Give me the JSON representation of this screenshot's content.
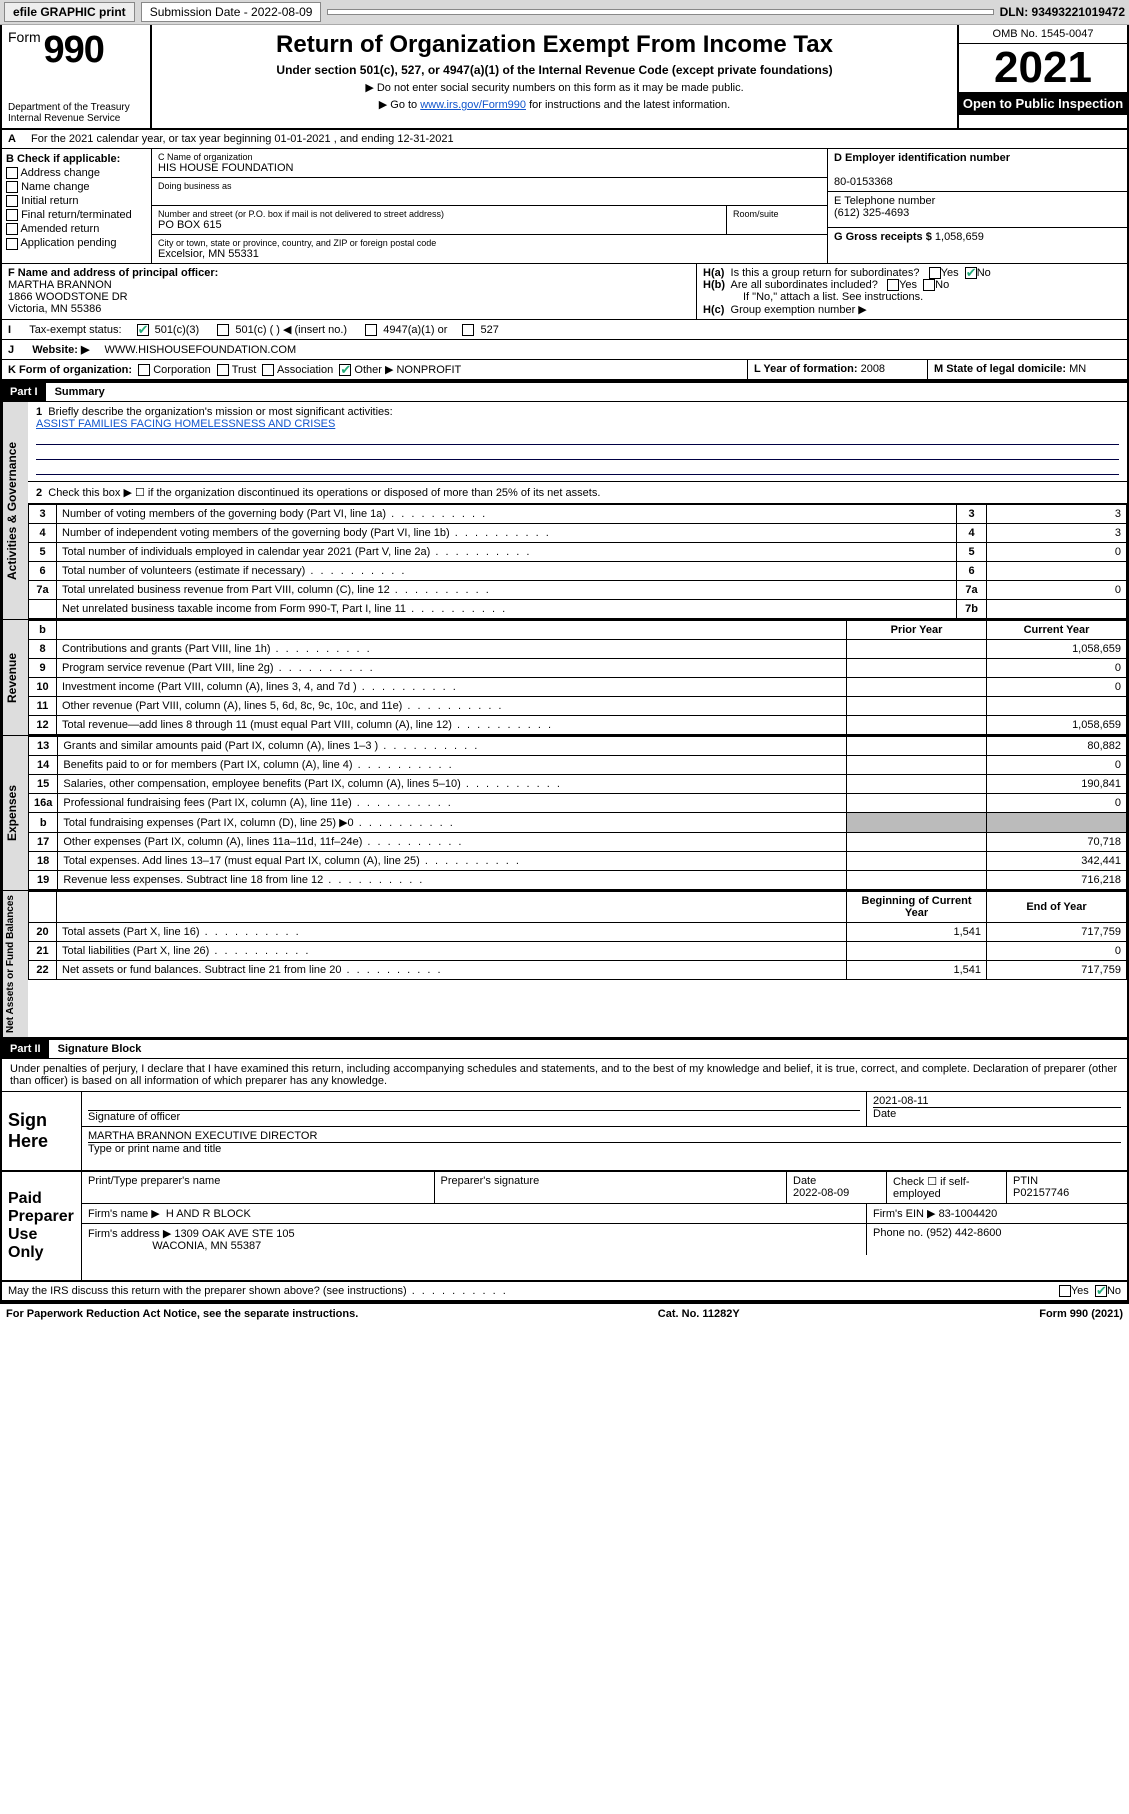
{
  "toolbar": {
    "efile": "efile GRAPHIC print",
    "submission_label": "Submission Date - 2022-08-09",
    "dln": "DLN: 93493221019472"
  },
  "header": {
    "form_word": "Form",
    "form_no": "990",
    "dept": "Department of the Treasury",
    "irs": "Internal Revenue Service",
    "title": "Return of Organization Exempt From Income Tax",
    "subtitle": "Under section 501(c), 527, or 4947(a)(1) of the Internal Revenue Code (except private foundations)",
    "note1": "▶ Do not enter social security numbers on this form as it may be made public.",
    "note2_pre": "▶ Go to ",
    "note2_link": "www.irs.gov/Form990",
    "note2_post": " for instructions and the latest information.",
    "omb": "OMB No. 1545-0047",
    "year": "2021",
    "open": "Open to Public Inspection"
  },
  "A": {
    "text": "For the 2021 calendar year, or tax year beginning 01-01-2021   , and ending 12-31-2021"
  },
  "B": {
    "label": "B Check if applicable:",
    "opts": [
      "Address change",
      "Name change",
      "Initial return",
      "Final return/terminated",
      "Amended return",
      "Application pending"
    ]
  },
  "C": {
    "name_lbl": "C Name of organization",
    "name": "HIS HOUSE FOUNDATION",
    "dba_lbl": "Doing business as",
    "dba": "",
    "addr_lbl": "Number and street (or P.O. box if mail is not delivered to street address)",
    "room_lbl": "Room/suite",
    "addr": "PO BOX 615",
    "city_lbl": "City or town, state or province, country, and ZIP or foreign postal code",
    "city": "Excelsior, MN  55331"
  },
  "D": {
    "lbl": "D Employer identification number",
    "val": "80-0153368"
  },
  "E": {
    "lbl": "E Telephone number",
    "val": "(612) 325-4693"
  },
  "G": {
    "lbl": "G Gross receipts $",
    "val": "1,058,659"
  },
  "F": {
    "lbl": "F  Name and address of principal officer:",
    "name": "MARTHA BRANNON",
    "addr1": "1866 WOODSTONE DR",
    "addr2": "Victoria, MN  55386"
  },
  "H": {
    "a": "Is this a group return for subordinates?",
    "b": "Are all subordinates included?",
    "b_note": "If \"No,\" attach a list. See instructions.",
    "c": "Group exemption number ▶",
    "yes": "Yes",
    "no": "No"
  },
  "I": {
    "lbl": "Tax-exempt status:",
    "o1": "501(c)(3)",
    "o2": "501(c) (   ) ◀ (insert no.)",
    "o3": "4947(a)(1) or",
    "o4": "527"
  },
  "J": {
    "lbl": "Website: ▶",
    "val": "WWW.HISHOUSEFOUNDATION.COM"
  },
  "K": {
    "lbl": "K Form of organization:",
    "opts": [
      "Corporation",
      "Trust",
      "Association",
      "Other ▶"
    ],
    "other": "NONPROFIT"
  },
  "L": {
    "lbl": "L Year of formation:",
    "val": "2008"
  },
  "M": {
    "lbl": "M State of legal domicile:",
    "val": "MN"
  },
  "part1": {
    "banner": "Part I",
    "title": "Summary",
    "q1": "Briefly describe the organization's mission or most significant activities:",
    "q1_ans": "ASSIST FAMILIES FACING HOMELESSNESS AND CRISES",
    "q2": "Check this box ▶ ☐  if the organization discontinued its operations or disposed of more than 25% of its net assets.",
    "prior_hdr": "Prior Year",
    "curr_hdr": "Current Year",
    "boy_hdr": "Beginning of Current Year",
    "eoy_hdr": "End of Year"
  },
  "lines_gov": [
    {
      "n": "3",
      "d": "Number of voting members of the governing body (Part VI, line 1a)",
      "b": "3",
      "v": "3"
    },
    {
      "n": "4",
      "d": "Number of independent voting members of the governing body (Part VI, line 1b)",
      "b": "4",
      "v": "3"
    },
    {
      "n": "5",
      "d": "Total number of individuals employed in calendar year 2021 (Part V, line 2a)",
      "b": "5",
      "v": "0"
    },
    {
      "n": "6",
      "d": "Total number of volunteers (estimate if necessary)",
      "b": "6",
      "v": ""
    },
    {
      "n": "7a",
      "d": "Total unrelated business revenue from Part VIII, column (C), line 12",
      "b": "7a",
      "v": "0"
    },
    {
      "n": "",
      "d": "Net unrelated business taxable income from Form 990-T, Part I, line 11",
      "b": "7b",
      "v": ""
    }
  ],
  "lines_rev": [
    {
      "n": "8",
      "d": "Contributions and grants (Part VIII, line 1h)",
      "p": "",
      "c": "1,058,659"
    },
    {
      "n": "9",
      "d": "Program service revenue (Part VIII, line 2g)",
      "p": "",
      "c": "0"
    },
    {
      "n": "10",
      "d": "Investment income (Part VIII, column (A), lines 3, 4, and 7d )",
      "p": "",
      "c": "0"
    },
    {
      "n": "11",
      "d": "Other revenue (Part VIII, column (A), lines 5, 6d, 8c, 9c, 10c, and 11e)",
      "p": "",
      "c": ""
    },
    {
      "n": "12",
      "d": "Total revenue—add lines 8 through 11 (must equal Part VIII, column (A), line 12)",
      "p": "",
      "c": "1,058,659"
    }
  ],
  "lines_exp": [
    {
      "n": "13",
      "d": "Grants and similar amounts paid (Part IX, column (A), lines 1–3 )",
      "p": "",
      "c": "80,882"
    },
    {
      "n": "14",
      "d": "Benefits paid to or for members (Part IX, column (A), line 4)",
      "p": "",
      "c": "0"
    },
    {
      "n": "15",
      "d": "Salaries, other compensation, employee benefits (Part IX, column (A), lines 5–10)",
      "p": "",
      "c": "190,841"
    },
    {
      "n": "16a",
      "d": "Professional fundraising fees (Part IX, column (A), line 11e)",
      "p": "",
      "c": "0"
    },
    {
      "n": "b",
      "d": "Total fundraising expenses (Part IX, column (D), line 25) ▶0",
      "p": "shade",
      "c": "shade"
    },
    {
      "n": "17",
      "d": "Other expenses (Part IX, column (A), lines 11a–11d, 11f–24e)",
      "p": "",
      "c": "70,718"
    },
    {
      "n": "18",
      "d": "Total expenses. Add lines 13–17 (must equal Part IX, column (A), line 25)",
      "p": "",
      "c": "342,441"
    },
    {
      "n": "19",
      "d": "Revenue less expenses. Subtract line 18 from line 12",
      "p": "",
      "c": "716,218"
    }
  ],
  "lines_net": [
    {
      "n": "20",
      "d": "Total assets (Part X, line 16)",
      "p": "1,541",
      "c": "717,759"
    },
    {
      "n": "21",
      "d": "Total liabilities (Part X, line 26)",
      "p": "",
      "c": "0"
    },
    {
      "n": "22",
      "d": "Net assets or fund balances. Subtract line 21 from line 20",
      "p": "1,541",
      "c": "717,759"
    }
  ],
  "part2": {
    "banner": "Part II",
    "title": "Signature Block",
    "decl": "Under penalties of perjury, I declare that I have examined this return, including accompanying schedules and statements, and to the best of my knowledge and belief, it is true, correct, and complete. Declaration of preparer (other than officer) is based on all information of which preparer has any knowledge."
  },
  "sign": {
    "here": "Sign Here",
    "sig_lbl": "Signature of officer",
    "date_lbl": "Date",
    "date": "2021-08-11",
    "name": "MARTHA BRANNON  EXECUTIVE DIRECTOR",
    "name_lbl": "Type or print name and title"
  },
  "paid": {
    "here": "Paid Preparer Use Only",
    "p_name_lbl": "Print/Type preparer's name",
    "p_sig_lbl": "Preparer's signature",
    "p_date_lbl": "Date",
    "p_date": "2022-08-09",
    "chk_lbl": "Check ☐ if self-employed",
    "ptin_lbl": "PTIN",
    "ptin": "P02157746",
    "firm_name_lbl": "Firm's name   ▶",
    "firm_name": "H AND R BLOCK",
    "firm_ein_lbl": "Firm's EIN ▶",
    "firm_ein": "83-1004420",
    "firm_addr_lbl": "Firm's address ▶",
    "firm_addr1": "1309 OAK AVE STE 105",
    "firm_addr2": "WACONIA, MN  55387",
    "firm_phone_lbl": "Phone no.",
    "firm_phone": "(952) 442-8600",
    "may": "May the IRS discuss this return with the preparer shown above? (see instructions)"
  },
  "footer": {
    "pra": "For Paperwork Reduction Act Notice, see the separate instructions.",
    "cat": "Cat. No. 11282Y",
    "form": "Form 990 (2021)"
  },
  "colors": {
    "toolbar_bg": "#d8d8d8",
    "banner_bg": "#000000",
    "shade": "#bbbbbb",
    "link": "#1155cc",
    "check": "#22aa77"
  }
}
